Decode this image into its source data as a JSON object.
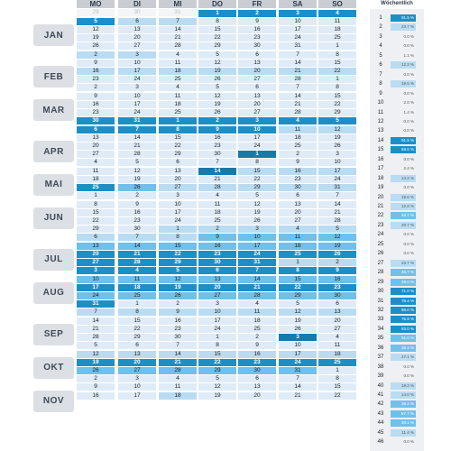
{
  "weekdays": [
    "MO",
    "DI",
    "MI",
    "DO",
    "FR",
    "SA",
    "SO"
  ],
  "weekly_title": "Wöchentlich",
  "months": [
    "JAN",
    "FEB",
    "MAR",
    "APR",
    "MAI",
    "JUN",
    "JUL",
    "AUG",
    "SEP",
    "OKT",
    "NOV"
  ],
  "prefix": [
    "29",
    "30",
    "31"
  ],
  "weeks": [
    {
      "days": [
        "",
        "",
        "",
        "1",
        "2",
        "3",
        "4"
      ],
      "s": [
        "",
        "",
        "",
        "d",
        "d",
        "d",
        "d"
      ]
    },
    {
      "days": [
        "5",
        "6",
        "7",
        "8",
        "9",
        "10",
        "11"
      ],
      "s": [
        "d",
        "l",
        "l",
        "p",
        "p",
        "p",
        "p"
      ]
    },
    {
      "days": [
        "12",
        "13",
        "14",
        "15",
        "16",
        "17",
        "18"
      ],
      "s": [
        "p",
        "p",
        "p",
        "p",
        "p",
        "p",
        "p"
      ]
    },
    {
      "days": [
        "19",
        "20",
        "21",
        "22",
        "23",
        "24",
        "25"
      ],
      "s": [
        "p",
        "p",
        "p",
        "p",
        "p",
        "p",
        "p"
      ]
    },
    {
      "days": [
        "26",
        "27",
        "28",
        "29",
        "30",
        "31",
        "1"
      ],
      "s": [
        "p",
        "p",
        "p",
        "p",
        "p",
        "p",
        "p"
      ]
    },
    {
      "days": [
        "2",
        "3",
        "4",
        "5",
        "6",
        "7",
        "8"
      ],
      "s": [
        "l",
        "l",
        "p",
        "p",
        "p",
        "p",
        "p"
      ]
    },
    {
      "days": [
        "9",
        "10",
        "11",
        "12",
        "13",
        "14",
        "15"
      ],
      "s": [
        "p",
        "p",
        "p",
        "p",
        "p",
        "p",
        "p"
      ]
    },
    {
      "days": [
        "16",
        "17",
        "18",
        "19",
        "20",
        "21",
        "22"
      ],
      "s": [
        "l",
        "l",
        "l",
        "l",
        "l",
        "l",
        "l"
      ]
    },
    {
      "days": [
        "23",
        "24",
        "25",
        "26",
        "27",
        "28",
        "1"
      ],
      "s": [
        "p",
        "p",
        "p",
        "p",
        "p",
        "p",
        "p"
      ]
    },
    {
      "days": [
        "2",
        "3",
        "4",
        "5",
        "6",
        "7",
        "8"
      ],
      "s": [
        "p",
        "p",
        "p",
        "p",
        "p",
        "p",
        "p"
      ]
    },
    {
      "days": [
        "9",
        "10",
        "11",
        "12",
        "13",
        "14",
        "15"
      ],
      "s": [
        "p",
        "p",
        "p",
        "p",
        "p",
        "p",
        "p"
      ]
    },
    {
      "days": [
        "16",
        "17",
        "18",
        "19",
        "20",
        "21",
        "22"
      ],
      "s": [
        "p",
        "p",
        "p",
        "p",
        "p",
        "p",
        "p"
      ]
    },
    {
      "days": [
        "23",
        "24",
        "25",
        "26",
        "27",
        "28",
        "29"
      ],
      "s": [
        "p",
        "p",
        "p",
        "p",
        "p",
        "p",
        "p"
      ]
    },
    {
      "days": [
        "30",
        "31",
        "1",
        "2",
        "3",
        "4",
        "5"
      ],
      "s": [
        "d",
        "d",
        "d",
        "d",
        "d",
        "d",
        "d"
      ]
    },
    {
      "days": [
        "6",
        "7",
        "8",
        "9",
        "10",
        "11",
        "12"
      ],
      "s": [
        "d",
        "d",
        "d",
        "d",
        "d",
        "l",
        "l"
      ]
    },
    {
      "days": [
        "13",
        "14",
        "15",
        "16",
        "17",
        "18",
        "19"
      ],
      "s": [
        "p",
        "p",
        "p",
        "p",
        "p",
        "p",
        "p"
      ]
    },
    {
      "days": [
        "20",
        "21",
        "22",
        "23",
        "24",
        "25",
        "26"
      ],
      "s": [
        "p",
        "p",
        "p",
        "p",
        "p",
        "p",
        "p"
      ]
    },
    {
      "days": [
        "27",
        "28",
        "29",
        "30",
        "1",
        "2",
        "3"
      ],
      "s": [
        "p",
        "p",
        "p",
        "p",
        "dd",
        "p",
        "p"
      ]
    },
    {
      "days": [
        "4",
        "5",
        "6",
        "7",
        "8",
        "9",
        "10"
      ],
      "s": [
        "p",
        "p",
        "p",
        "p",
        "p",
        "p",
        "p"
      ]
    },
    {
      "days": [
        "11",
        "12",
        "13",
        "14",
        "15",
        "16",
        "17"
      ],
      "s": [
        "p",
        "p",
        "p",
        "dd",
        "l",
        "l",
        "l"
      ]
    },
    {
      "days": [
        "18",
        "19",
        "20",
        "21",
        "22",
        "23",
        "24"
      ],
      "s": [
        "p",
        "p",
        "p",
        "p",
        "p",
        "p",
        "p"
      ]
    },
    {
      "days": [
        "25",
        "26",
        "27",
        "28",
        "29",
        "30",
        "31"
      ],
      "s": [
        "d",
        "m",
        "l",
        "l",
        "l",
        "l",
        "l"
      ]
    },
    {
      "days": [
        "1",
        "2",
        "3",
        "4",
        "5",
        "6",
        "7"
      ],
      "s": [
        "p",
        "p",
        "p",
        "p",
        "p",
        "p",
        "p"
      ]
    },
    {
      "days": [
        "8",
        "9",
        "10",
        "11",
        "12",
        "13",
        "14"
      ],
      "s": [
        "p",
        "p",
        "p",
        "p",
        "p",
        "p",
        "p"
      ]
    },
    {
      "days": [
        "15",
        "16",
        "17",
        "18",
        "19",
        "20",
        "21"
      ],
      "s": [
        "p",
        "p",
        "p",
        "p",
        "p",
        "p",
        "p"
      ]
    },
    {
      "days": [
        "22",
        "23",
        "24",
        "25",
        "26",
        "27",
        "28"
      ],
      "s": [
        "p",
        "p",
        "p",
        "p",
        "p",
        "p",
        "p"
      ]
    },
    {
      "days": [
        "29",
        "30",
        "1",
        "2",
        "3",
        "4",
        "5"
      ],
      "s": [
        "p",
        "p",
        "l",
        "l",
        "l",
        "l",
        "l"
      ]
    },
    {
      "days": [
        "6",
        "7",
        "8",
        "9",
        "10",
        "11",
        "12"
      ],
      "s": [
        "l",
        "l",
        "l",
        "m",
        "m",
        "m",
        "m"
      ]
    },
    {
      "days": [
        "13",
        "14",
        "15",
        "16",
        "17",
        "18",
        "19"
      ],
      "s": [
        "m",
        "m",
        "m",
        "m",
        "m",
        "m",
        "m"
      ]
    },
    {
      "days": [
        "20",
        "21",
        "22",
        "23",
        "24",
        "25",
        "26"
      ],
      "s": [
        "d",
        "d",
        "d",
        "d",
        "d",
        "d",
        "d"
      ]
    },
    {
      "days": [
        "27",
        "28",
        "29",
        "30",
        "31",
        "1",
        "2"
      ],
      "s": [
        "d",
        "d",
        "d",
        "d",
        "d",
        "l",
        "l"
      ]
    },
    {
      "days": [
        "3",
        "4",
        "5",
        "6",
        "7",
        "8",
        "9"
      ],
      "s": [
        "d",
        "d",
        "d",
        "d",
        "d",
        "d",
        "d"
      ]
    },
    {
      "days": [
        "10",
        "11",
        "12",
        "13",
        "14",
        "15",
        "16"
      ],
      "s": [
        "m",
        "m",
        "m",
        "m",
        "m",
        "m",
        "m"
      ]
    },
    {
      "days": [
        "17",
        "18",
        "19",
        "20",
        "21",
        "22",
        "23"
      ],
      "s": [
        "d",
        "d",
        "d",
        "d",
        "d",
        "d",
        "d"
      ]
    },
    {
      "days": [
        "24",
        "25",
        "26",
        "27",
        "28",
        "29",
        "30"
      ],
      "s": [
        "m",
        "m",
        "m",
        "m",
        "m",
        "m",
        "m"
      ]
    },
    {
      "days": [
        "31",
        "1",
        "2",
        "3",
        "4",
        "5",
        "6"
      ],
      "s": [
        "d",
        "p",
        "p",
        "p",
        "p",
        "p",
        "p"
      ]
    },
    {
      "days": [
        "7",
        "8",
        "9",
        "10",
        "11",
        "12",
        "13"
      ],
      "s": [
        "l",
        "l",
        "l",
        "l",
        "l",
        "l",
        "l"
      ]
    },
    {
      "days": [
        "14",
        "15",
        "16",
        "17",
        "18",
        "19",
        "20"
      ],
      "s": [
        "p",
        "p",
        "p",
        "p",
        "p",
        "p",
        "p"
      ]
    },
    {
      "days": [
        "21",
        "22",
        "23",
        "24",
        "25",
        "26",
        "27"
      ],
      "s": [
        "p",
        "p",
        "p",
        "p",
        "p",
        "p",
        "p"
      ]
    },
    {
      "days": [
        "28",
        "29",
        "30",
        "1",
        "2",
        "3",
        "4"
      ],
      "s": [
        "p",
        "p",
        "p",
        "p",
        "p",
        "dd",
        "p"
      ]
    },
    {
      "days": [
        "5",
        "6",
        "7",
        "8",
        "9",
        "10",
        "11"
      ],
      "s": [
        "p",
        "p",
        "p",
        "p",
        "p",
        "p",
        "p"
      ]
    },
    {
      "days": [
        "12",
        "13",
        "14",
        "15",
        "16",
        "17",
        "18"
      ],
      "s": [
        "l",
        "l",
        "l",
        "l",
        "l",
        "l",
        "l"
      ]
    },
    {
      "days": [
        "19",
        "20",
        "21",
        "22",
        "23",
        "24",
        "25"
      ],
      "s": [
        "d",
        "d",
        "d",
        "d",
        "d",
        "d",
        "d"
      ]
    },
    {
      "days": [
        "26",
        "27",
        "28",
        "29",
        "30",
        "31",
        "1"
      ],
      "s": [
        "m",
        "m",
        "m",
        "m",
        "m",
        "m",
        "p"
      ]
    },
    {
      "days": [
        "2",
        "3",
        "4",
        "5",
        "6",
        "7",
        "8"
      ],
      "s": [
        "p",
        "p",
        "p",
        "p",
        "p",
        "p",
        "p"
      ]
    },
    {
      "days": [
        "9",
        "10",
        "11",
        "12",
        "13",
        "14",
        "15"
      ],
      "s": [
        "p",
        "p",
        "p",
        "p",
        "p",
        "p",
        "p"
      ]
    },
    {
      "days": [
        "16",
        "17",
        "18",
        "19",
        "20",
        "21",
        "22"
      ],
      "s": [
        "p",
        "p",
        "l",
        "p",
        "p",
        "p",
        "p"
      ]
    }
  ],
  "weekly": [
    [
      "1",
      "91.5 %"
    ],
    [
      "2",
      "23.7 %"
    ],
    [
      "3",
      "0.0 %"
    ],
    [
      "4",
      "0.0 %"
    ],
    [
      "5",
      "1.1 %"
    ],
    [
      "6",
      "12.2 %"
    ],
    [
      "7",
      "0.0 %"
    ],
    [
      "8",
      "19.5 %"
    ],
    [
      "9",
      "0.0 %"
    ],
    [
      "10",
      "2.0 %"
    ],
    [
      "11",
      "1.4 %"
    ],
    [
      "12",
      "0.0 %"
    ],
    [
      "13",
      "0.0 %"
    ],
    [
      "14",
      "91.5 %"
    ],
    [
      "15",
      "69.6 %"
    ],
    [
      "16",
      "0.0 %"
    ],
    [
      "17",
      "2.4 %"
    ],
    [
      "18",
      "14.2 %"
    ],
    [
      "19",
      "0.0 %"
    ],
    [
      "20",
      "19.6 %"
    ],
    [
      "21",
      "12.8 %"
    ],
    [
      "22",
      "46.7 %"
    ],
    [
      "23",
      "20.7 %"
    ],
    [
      "24",
      "0.0 %"
    ],
    [
      "25",
      "0.0 %"
    ],
    [
      "26",
      "0.0 %"
    ],
    [
      "27",
      "23.7 %"
    ],
    [
      "28",
      "45.7 %"
    ],
    [
      "29",
      "49.0 %"
    ],
    [
      "30",
      "71.0 %"
    ],
    [
      "31",
      "78.4 %"
    ],
    [
      "32",
      "96.0 %"
    ],
    [
      "33",
      "76.8 %"
    ],
    [
      "34",
      "93.0 %"
    ],
    [
      "35",
      "51.0 %"
    ],
    [
      "36",
      "35.2 %"
    ],
    [
      "37",
      "27.1 %"
    ],
    [
      "38",
      "0.0 %"
    ],
    [
      "39",
      "0.0 %"
    ],
    [
      "40",
      "19.2 %"
    ],
    [
      "41",
      "14.0 %"
    ],
    [
      "42",
      "38.2 %"
    ],
    [
      "43",
      "57.7 %"
    ],
    [
      "44",
      "30.1 %"
    ],
    [
      "45",
      "11.4 %"
    ],
    [
      "46",
      "0.0 %"
    ],
    [
      "47",
      "0.0 %"
    ]
  ],
  "colors": {
    "dark": "#1d8fc7",
    "medium": "#6fc0ea",
    "light": "#b9dcf2",
    "pale": "#e6f1fa",
    "header": "#c9cdd3"
  }
}
